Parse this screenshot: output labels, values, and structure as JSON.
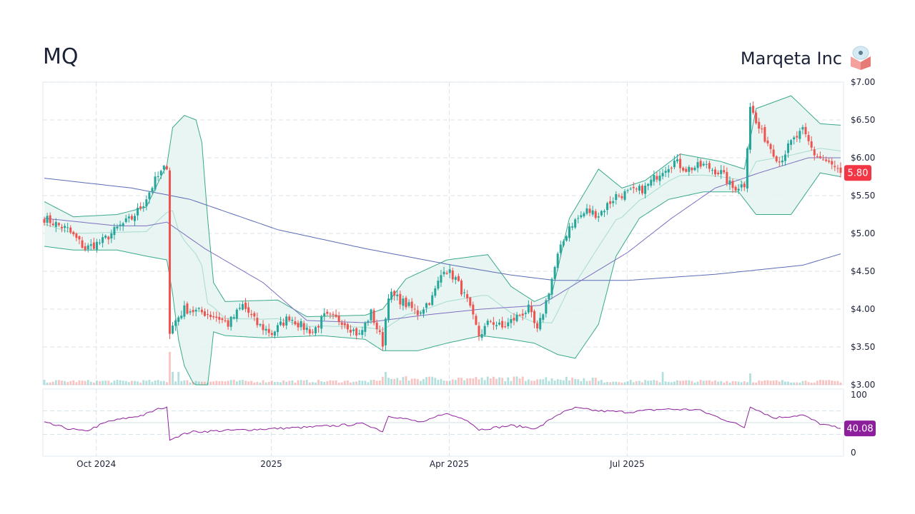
{
  "header": {
    "ticker": "MQ",
    "company": "Marqeta Inc",
    "logo_icon": "marqeta-logo-icon"
  },
  "colors": {
    "up": "#26a69a",
    "down": "#ef5350",
    "band_line": "#3aa98c",
    "band_fill": "#e6f4f1",
    "sma_long": "#5b6bb5",
    "sma_mid": "#7e6fc0",
    "rsi": "#8e1f9c",
    "price_badge": "#f23645",
    "rsi_badge": "#8e1f9c"
  },
  "price_badge": "5.80",
  "rsi_badge": "40.08",
  "chart_data": {
    "type": "candlestick",
    "title": "",
    "x_ticks": [
      "Oct 2024",
      "2025",
      "Apr 2025",
      "Jul 2025"
    ],
    "y_ticks": [
      "$7.00",
      "$6.50",
      "$6.00",
      "$5.50",
      "$5.00",
      "$4.50",
      "$4.00",
      "$3.50",
      "$3.00"
    ],
    "ylim": [
      3.0,
      7.0
    ],
    "rsi_ticks": [
      "100",
      "0"
    ],
    "rsi_ylim": [
      0,
      100
    ],
    "last_close": 5.8,
    "last_rsi": 40.08,
    "close_anchors": [
      {
        "i": 0,
        "c": 5.2
      },
      {
        "i": 8,
        "c": 5.05
      },
      {
        "i": 14,
        "c": 4.8
      },
      {
        "i": 20,
        "c": 4.9
      },
      {
        "i": 26,
        "c": 5.1
      },
      {
        "i": 30,
        "c": 5.2
      },
      {
        "i": 34,
        "c": 5.4
      },
      {
        "i": 38,
        "c": 5.7
      },
      {
        "i": 42,
        "c": 5.9
      },
      {
        "i": 43,
        "c": 3.7
      },
      {
        "i": 45,
        "c": 3.85
      },
      {
        "i": 48,
        "c": 4.0
      },
      {
        "i": 55,
        "c": 3.95
      },
      {
        "i": 60,
        "c": 3.88
      },
      {
        "i": 63,
        "c": 3.8
      },
      {
        "i": 68,
        "c": 4.05
      },
      {
        "i": 73,
        "c": 3.8
      },
      {
        "i": 78,
        "c": 3.68
      },
      {
        "i": 84,
        "c": 3.9
      },
      {
        "i": 88,
        "c": 3.78
      },
      {
        "i": 92,
        "c": 3.7
      },
      {
        "i": 96,
        "c": 3.9
      },
      {
        "i": 102,
        "c": 3.85
      },
      {
        "i": 108,
        "c": 3.65
      },
      {
        "i": 112,
        "c": 3.95
      },
      {
        "i": 116,
        "c": 3.55
      },
      {
        "i": 118,
        "c": 4.2
      },
      {
        "i": 122,
        "c": 4.12
      },
      {
        "i": 128,
        "c": 3.95
      },
      {
        "i": 133,
        "c": 4.15
      },
      {
        "i": 137,
        "c": 4.55
      },
      {
        "i": 141,
        "c": 4.4
      },
      {
        "i": 145,
        "c": 4.1
      },
      {
        "i": 149,
        "c": 3.65
      },
      {
        "i": 153,
        "c": 3.85
      },
      {
        "i": 157,
        "c": 3.75
      },
      {
        "i": 162,
        "c": 3.9
      },
      {
        "i": 166,
        "c": 4.0
      },
      {
        "i": 169,
        "c": 3.7
      },
      {
        "i": 172,
        "c": 4.1
      },
      {
        "i": 176,
        "c": 4.7
      },
      {
        "i": 180,
        "c": 5.1
      },
      {
        "i": 186,
        "c": 5.3
      },
      {
        "i": 190,
        "c": 5.25
      },
      {
        "i": 196,
        "c": 5.5
      },
      {
        "i": 202,
        "c": 5.55
      },
      {
        "i": 206,
        "c": 5.6
      },
      {
        "i": 212,
        "c": 5.85
      },
      {
        "i": 216,
        "c": 5.95
      },
      {
        "i": 220,
        "c": 5.85
      },
      {
        "i": 226,
        "c": 5.9
      },
      {
        "i": 232,
        "c": 5.8
      },
      {
        "i": 236,
        "c": 5.6
      },
      {
        "i": 240,
        "c": 5.65
      },
      {
        "i": 242,
        "c": 6.7
      },
      {
        "i": 244,
        "c": 6.45
      },
      {
        "i": 248,
        "c": 6.2
      },
      {
        "i": 252,
        "c": 5.95
      },
      {
        "i": 256,
        "c": 6.2
      },
      {
        "i": 260,
        "c": 6.35
      },
      {
        "i": 264,
        "c": 6.05
      },
      {
        "i": 268,
        "c": 5.95
      },
      {
        "i": 273,
        "c": 5.8
      }
    ],
    "sma_long_anchors": [
      {
        "i": 0,
        "v": 5.73
      },
      {
        "i": 30,
        "v": 5.6
      },
      {
        "i": 50,
        "v": 5.45
      },
      {
        "i": 80,
        "v": 5.05
      },
      {
        "i": 110,
        "v": 4.8
      },
      {
        "i": 140,
        "v": 4.58
      },
      {
        "i": 160,
        "v": 4.45
      },
      {
        "i": 175,
        "v": 4.38
      },
      {
        "i": 200,
        "v": 4.38
      },
      {
        "i": 230,
        "v": 4.46
      },
      {
        "i": 260,
        "v": 4.58
      },
      {
        "i": 273,
        "v": 4.73
      }
    ],
    "sma_mid_anchors": [
      {
        "i": 0,
        "v": 5.2
      },
      {
        "i": 25,
        "v": 5.1
      },
      {
        "i": 35,
        "v": 5.1
      },
      {
        "i": 42,
        "v": 5.15
      },
      {
        "i": 55,
        "v": 4.8
      },
      {
        "i": 75,
        "v": 4.35
      },
      {
        "i": 90,
        "v": 3.85
      },
      {
        "i": 110,
        "v": 3.82
      },
      {
        "i": 130,
        "v": 3.92
      },
      {
        "i": 150,
        "v": 4.0
      },
      {
        "i": 170,
        "v": 4.05
      },
      {
        "i": 185,
        "v": 4.4
      },
      {
        "i": 200,
        "v": 4.75
      },
      {
        "i": 215,
        "v": 5.2
      },
      {
        "i": 230,
        "v": 5.6
      },
      {
        "i": 245,
        "v": 5.8
      },
      {
        "i": 262,
        "v": 6.0
      },
      {
        "i": 273,
        "v": 6.0
      }
    ],
    "bb_upper_anchors": [
      {
        "i": 0,
        "v": 5.42
      },
      {
        "i": 10,
        "v": 5.22
      },
      {
        "i": 25,
        "v": 5.25
      },
      {
        "i": 35,
        "v": 5.35
      },
      {
        "i": 40,
        "v": 5.75
      },
      {
        "i": 42,
        "v": 5.9
      },
      {
        "i": 44,
        "v": 6.4
      },
      {
        "i": 48,
        "v": 6.56
      },
      {
        "i": 52,
        "v": 6.5
      },
      {
        "i": 54,
        "v": 6.2
      },
      {
        "i": 56,
        "v": 5.2
      },
      {
        "i": 58,
        "v": 4.35
      },
      {
        "i": 62,
        "v": 4.1
      },
      {
        "i": 80,
        "v": 4.12
      },
      {
        "i": 90,
        "v": 3.9
      },
      {
        "i": 110,
        "v": 3.92
      },
      {
        "i": 116,
        "v": 4.0
      },
      {
        "i": 124,
        "v": 4.4
      },
      {
        "i": 138,
        "v": 4.65
      },
      {
        "i": 152,
        "v": 4.72
      },
      {
        "i": 160,
        "v": 4.3
      },
      {
        "i": 168,
        "v": 4.1
      },
      {
        "i": 174,
        "v": 4.2
      },
      {
        "i": 180,
        "v": 5.2
      },
      {
        "i": 190,
        "v": 5.85
      },
      {
        "i": 198,
        "v": 5.6
      },
      {
        "i": 206,
        "v": 5.7
      },
      {
        "i": 218,
        "v": 6.05
      },
      {
        "i": 232,
        "v": 5.95
      },
      {
        "i": 240,
        "v": 5.85
      },
      {
        "i": 244,
        "v": 6.65
      },
      {
        "i": 256,
        "v": 6.82
      },
      {
        "i": 266,
        "v": 6.45
      },
      {
        "i": 273,
        "v": 6.43
      }
    ],
    "bb_lower_anchors": [
      {
        "i": 0,
        "v": 4.83
      },
      {
        "i": 10,
        "v": 4.78
      },
      {
        "i": 25,
        "v": 4.78
      },
      {
        "i": 35,
        "v": 4.7
      },
      {
        "i": 42,
        "v": 4.65
      },
      {
        "i": 44,
        "v": 4.2
      },
      {
        "i": 46,
        "v": 3.6
      },
      {
        "i": 48,
        "v": 3.25
      },
      {
        "i": 52,
        "v": 2.95
      },
      {
        "i": 56,
        "v": 2.95
      },
      {
        "i": 58,
        "v": 3.7
      },
      {
        "i": 62,
        "v": 3.65
      },
      {
        "i": 75,
        "v": 3.62
      },
      {
        "i": 95,
        "v": 3.65
      },
      {
        "i": 110,
        "v": 3.6
      },
      {
        "i": 116,
        "v": 3.45
      },
      {
        "i": 128,
        "v": 3.45
      },
      {
        "i": 138,
        "v": 3.55
      },
      {
        "i": 150,
        "v": 3.65
      },
      {
        "i": 160,
        "v": 3.6
      },
      {
        "i": 168,
        "v": 3.55
      },
      {
        "i": 176,
        "v": 3.4
      },
      {
        "i": 182,
        "v": 3.35
      },
      {
        "i": 190,
        "v": 3.8
      },
      {
        "i": 196,
        "v": 4.7
      },
      {
        "i": 204,
        "v": 5.2
      },
      {
        "i": 214,
        "v": 5.45
      },
      {
        "i": 226,
        "v": 5.55
      },
      {
        "i": 238,
        "v": 5.55
      },
      {
        "i": 244,
        "v": 5.25
      },
      {
        "i": 256,
        "v": 5.25
      },
      {
        "i": 266,
        "v": 5.8
      },
      {
        "i": 273,
        "v": 5.75
      }
    ],
    "rsi_anchors": [
      {
        "i": 0,
        "v": 50
      },
      {
        "i": 8,
        "v": 40
      },
      {
        "i": 14,
        "v": 35
      },
      {
        "i": 22,
        "v": 52
      },
      {
        "i": 34,
        "v": 63
      },
      {
        "i": 40,
        "v": 75
      },
      {
        "i": 42,
        "v": 75
      },
      {
        "i": 43,
        "v": 22
      },
      {
        "i": 50,
        "v": 34
      },
      {
        "i": 70,
        "v": 38
      },
      {
        "i": 90,
        "v": 42
      },
      {
        "i": 110,
        "v": 48
      },
      {
        "i": 116,
        "v": 35
      },
      {
        "i": 118,
        "v": 62
      },
      {
        "i": 130,
        "v": 50
      },
      {
        "i": 137,
        "v": 66
      },
      {
        "i": 145,
        "v": 55
      },
      {
        "i": 149,
        "v": 38
      },
      {
        "i": 160,
        "v": 45
      },
      {
        "i": 169,
        "v": 40
      },
      {
        "i": 176,
        "v": 64
      },
      {
        "i": 182,
        "v": 75
      },
      {
        "i": 190,
        "v": 70
      },
      {
        "i": 200,
        "v": 68
      },
      {
        "i": 212,
        "v": 73
      },
      {
        "i": 224,
        "v": 72
      },
      {
        "i": 236,
        "v": 50
      },
      {
        "i": 240,
        "v": 42
      },
      {
        "i": 242,
        "v": 78
      },
      {
        "i": 250,
        "v": 58
      },
      {
        "i": 260,
        "v": 63
      },
      {
        "i": 266,
        "v": 48
      },
      {
        "i": 273,
        "v": 40
      }
    ]
  }
}
